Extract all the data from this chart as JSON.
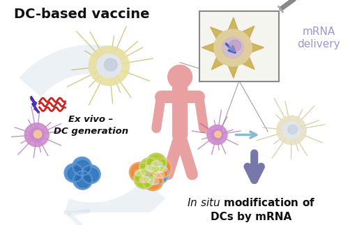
{
  "background_color": "#ffffff",
  "fig_width": 5.12,
  "fig_height": 3.23,
  "dpi": 100,
  "gray_arrow": "#d0dce8",
  "purple_arrow": "#7777aa",
  "cyan_arrow": "#88bbcc",
  "human_color": "#e8a0a0",
  "dc_top_body": "#e8e0b0",
  "dc_top_spike": "#c8b868",
  "dc_purple_body": "#cc88cc",
  "dc_purple_spike": "#9955aa",
  "dc_nucleus_blue": "#8899cc",
  "dc_yellow_nucleus": "#eedd88",
  "blue_cell": "#4488cc",
  "blue_cell_dark": "#2266aa",
  "text_vaccine": "DC-based vaccine",
  "text_exvivo": "Ex vivo –\nDC generation",
  "text_mrna": "mRNA\ndelivery",
  "text_insitu_line1": "In situ modification of",
  "text_insitu_line2": "DCs by mRNA"
}
